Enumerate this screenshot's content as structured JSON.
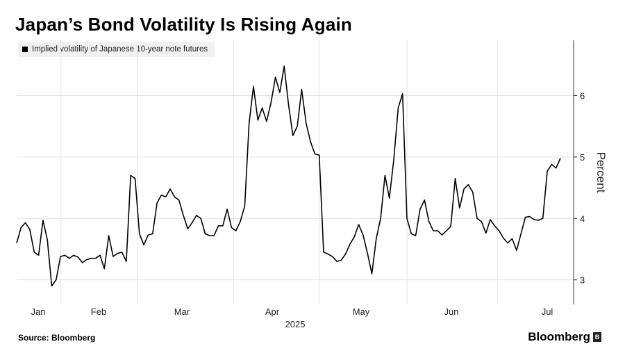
{
  "title": "Japan’s Bond Volatility Is Rising Again",
  "legend_label": "Implied volatility of Japanese 10-year note futures",
  "source": "Source: Bloomberg",
  "brand": "Bloomberg",
  "chart_data": {
    "type": "line",
    "title": "Japan’s Bond Volatility Is Rising Again",
    "ylabel": "Percent",
    "xlabel": "2025",
    "ylim": [
      2.6,
      6.9
    ],
    "yticks": [
      3,
      4,
      5,
      6
    ],
    "month_labels": [
      "Jan",
      "Feb",
      "Mar",
      "Apr",
      "May",
      "Jun",
      "Jul"
    ],
    "line_color": "#000000",
    "grid": true,
    "series": [
      {
        "name": "Implied volatility of Japanese 10-year note futures",
        "values": [
          3.6,
          3.85,
          3.93,
          3.82,
          3.45,
          3.4,
          3.97,
          3.65,
          2.9,
          3.0,
          3.38,
          3.4,
          3.35,
          3.4,
          3.37,
          3.28,
          3.33,
          3.35,
          3.35,
          3.4,
          3.18,
          3.72,
          3.38,
          3.43,
          3.45,
          3.3,
          4.7,
          4.65,
          3.75,
          3.57,
          3.73,
          3.75,
          4.25,
          4.38,
          4.35,
          4.48,
          4.35,
          4.3,
          4.05,
          3.83,
          3.93,
          4.05,
          4.0,
          3.75,
          3.72,
          3.72,
          3.88,
          3.88,
          4.15,
          3.85,
          3.8,
          3.95,
          4.2,
          5.55,
          6.15,
          5.6,
          5.8,
          5.58,
          5.88,
          6.3,
          6.05,
          6.48,
          5.85,
          5.35,
          5.5,
          6.1,
          5.55,
          5.25,
          5.05,
          5.03,
          3.45,
          3.42,
          3.38,
          3.3,
          3.32,
          3.42,
          3.58,
          3.7,
          3.9,
          3.73,
          3.43,
          3.1,
          3.67,
          4.0,
          4.7,
          4.33,
          4.95,
          5.8,
          6.03,
          4.0,
          3.75,
          3.72,
          4.15,
          4.3,
          3.95,
          3.8,
          3.8,
          3.73,
          3.8,
          3.87,
          4.65,
          4.17,
          4.48,
          4.55,
          4.43,
          4.0,
          3.95,
          3.76,
          3.98,
          3.88,
          3.8,
          3.68,
          3.6,
          3.67,
          3.48,
          3.75,
          4.02,
          4.03,
          3.98,
          3.97,
          4.0,
          4.77,
          4.88,
          4.82,
          4.98
        ]
      }
    ]
  }
}
